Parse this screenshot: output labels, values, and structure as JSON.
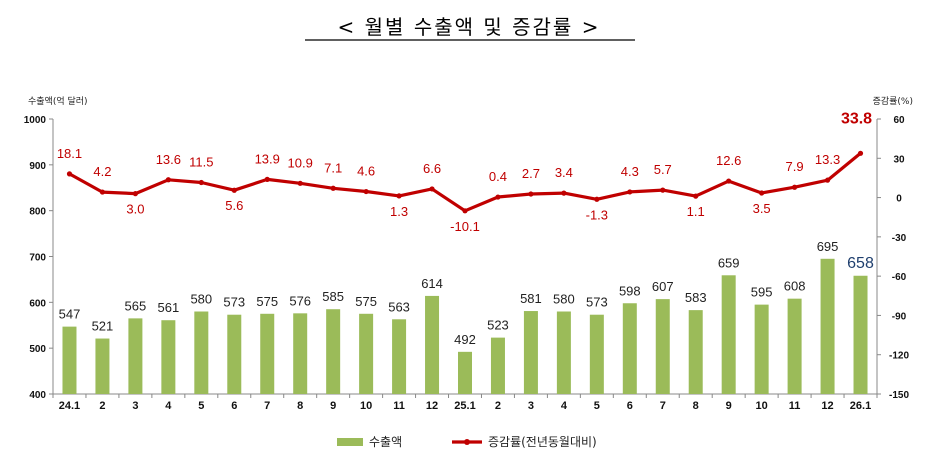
{
  "chart_data": {
    "type": "bar",
    "title": "< 월별 수출액 및 증감률 >",
    "y_left_label": "수출액(억 달러)",
    "y_right_label": "증감률(%)",
    "ylim_left": [
      400,
      1000
    ],
    "yticks_left": [
      400,
      500,
      600,
      700,
      800,
      900,
      1000
    ],
    "ylim_right": [
      -150,
      60
    ],
    "yticks_right": [
      -150,
      -120,
      -90,
      -60,
      -30,
      0,
      30,
      60
    ],
    "grid": false,
    "legend_position": "bottom-center",
    "categories": [
      "24.1",
      "2",
      "3",
      "4",
      "5",
      "6",
      "7",
      "8",
      "9",
      "10",
      "11",
      "12",
      "25.1",
      "2",
      "3",
      "4",
      "5",
      "6",
      "7",
      "8",
      "9",
      "10",
      "11",
      "12",
      "26.1"
    ],
    "series": [
      {
        "name": "수출액",
        "type": "bar",
        "axis": "left",
        "color": "#9bbb59",
        "values": [
          547,
          521,
          565,
          561,
          580,
          573,
          575,
          576,
          585,
          575,
          563,
          614,
          492,
          523,
          581,
          580,
          573,
          598,
          607,
          583,
          659,
          595,
          608,
          695,
          658
        ]
      },
      {
        "name": "증감률(전년동월대비)",
        "type": "line",
        "axis": "right",
        "color": "#c00000",
        "values": [
          18.1,
          4.2,
          3.0,
          13.6,
          11.5,
          5.6,
          13.9,
          10.9,
          7.1,
          4.6,
          1.3,
          6.6,
          -10.1,
          0.4,
          2.7,
          3.4,
          -1.3,
          4.3,
          5.7,
          1.1,
          12.6,
          3.5,
          7.9,
          13.3,
          33.8
        ]
      }
    ],
    "bar_labels": [
      "547",
      "521",
      "565",
      "561",
      "580",
      "573",
      "575",
      "576",
      "585",
      "575",
      "563",
      "614",
      "492",
      "523",
      "581",
      "580",
      "573",
      "598",
      "607",
      "583",
      "659",
      "595",
      "608",
      "695",
      "658"
    ],
    "line_labels": [
      "18.1",
      "4.2",
      "3.0",
      "13.6",
      "11.5",
      "5.6",
      "13.9",
      "10.9",
      "7.1",
      "4.6",
      "1.3",
      "6.6",
      "-10.1",
      "0.4",
      "2.7",
      "3.4",
      "-1.3",
      "4.3",
      "5.7",
      "1.1",
      "12.6",
      "3.5",
      "7.9",
      "13.3",
      "33.8"
    ],
    "highlight_colors": {
      "last_bar_label": "#1f3f6e",
      "last_line_label": "#c00000"
    }
  }
}
